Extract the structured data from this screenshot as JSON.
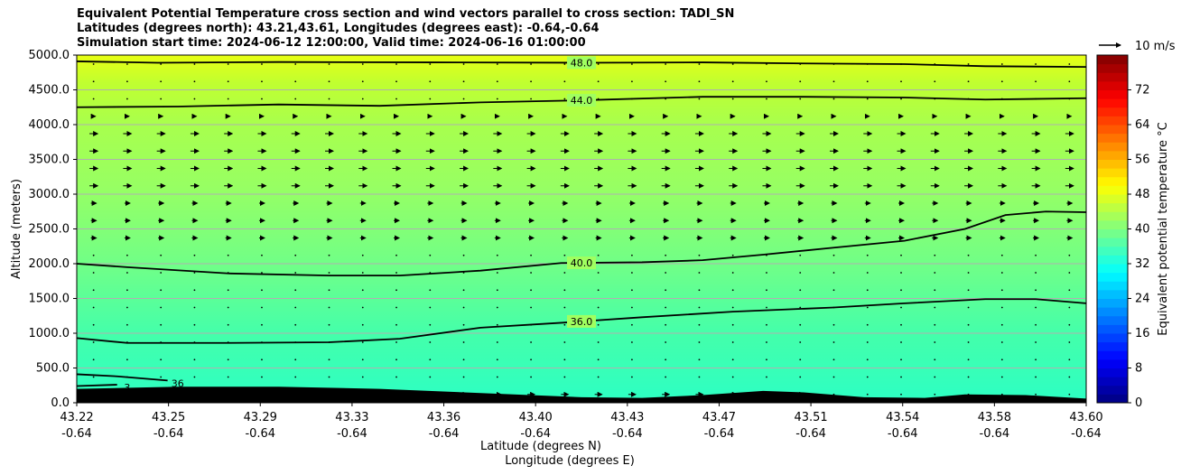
{
  "chart_data": {
    "type": "heatmap",
    "title": [
      "Equivalent Potential Temperature cross section and wind vectors parallel to cross section: TADI_SN",
      "Latitudes (degrees north): 43.21,43.61, Longitudes (degrees east): -0.64,-0.64",
      "Simulation start time: 2024-06-12 12:00:00, Valid time: 2024-06-16 01:00:00"
    ],
    "xlabel": "Latitude (degrees N)",
    "xlabel2": "Longitude (degrees E)",
    "ylabel": "Altitude (meters)",
    "ylim": [
      0,
      5000
    ],
    "yticks": [
      "0.0",
      "500.0",
      "1000.0",
      "1500.0",
      "2000.0",
      "2500.0",
      "3000.0",
      "3500.0",
      "4000.0",
      "4500.0",
      "5000.0"
    ],
    "xticks_lat": [
      "43.22",
      "43.25",
      "43.29",
      "43.33",
      "43.36",
      "43.40",
      "43.43",
      "43.47",
      "43.51",
      "43.54",
      "43.58",
      "43.60"
    ],
    "xticks_lon": [
      "-0.64",
      "-0.64",
      "-0.64",
      "-0.64",
      "-0.64",
      "-0.64",
      "-0.64",
      "-0.64",
      "-0.64",
      "-0.64",
      "-0.64",
      "-0.64"
    ],
    "colorbar": {
      "label": "Equivalent potential temperature °C",
      "range": [
        0,
        80
      ],
      "ticks": [
        "0",
        "8",
        "16",
        "24",
        "32",
        "40",
        "48",
        "56",
        "64",
        "72"
      ],
      "colormap": "jet"
    },
    "quiver_key": "10 m/s",
    "contours": [
      {
        "level": "48.0",
        "label": "48.0",
        "x": [
          0,
          0.08,
          0.2,
          0.35,
          0.5,
          0.62,
          0.72,
          0.82,
          0.9,
          1.0
        ],
        "y": [
          4910,
          4890,
          4900,
          4895,
          4890,
          4895,
          4880,
          4870,
          4840,
          4830
        ]
      },
      {
        "level": "44.0",
        "label": "44.0",
        "x": [
          0,
          0.1,
          0.2,
          0.3,
          0.4,
          0.5,
          0.62,
          0.72,
          0.82,
          0.9,
          1.0
        ],
        "y": [
          4250,
          4260,
          4290,
          4270,
          4320,
          4350,
          4400,
          4400,
          4390,
          4360,
          4380
        ]
      },
      {
        "level": "40.0",
        "label": "40.0",
        "x": [
          0,
          0.05,
          0.15,
          0.25,
          0.32,
          0.4,
          0.48,
          0.56,
          0.62,
          0.68,
          0.75,
          0.82,
          0.88,
          0.92,
          0.96,
          1.0
        ],
        "y": [
          2000,
          1950,
          1860,
          1830,
          1830,
          1900,
          2010,
          2020,
          2050,
          2130,
          2230,
          2330,
          2500,
          2700,
          2750,
          2740
        ]
      },
      {
        "level": "36.0",
        "label": "36.0",
        "x": [
          0,
          0.05,
          0.15,
          0.25,
          0.32,
          0.4,
          0.48,
          0.56,
          0.65,
          0.75,
          0.82,
          0.9,
          0.95,
          1.0
        ],
        "y": [
          930,
          860,
          860,
          870,
          920,
          1080,
          1150,
          1230,
          1310,
          1370,
          1430,
          1490,
          1490,
          1430
        ]
      },
      {
        "level": "36.0",
        "label": "36",
        "x": [
          0,
          0.04,
          0.09
        ],
        "y": [
          410,
          380,
          320
        ]
      },
      {
        "level": "36.0",
        "label": "3",
        "x": [
          0,
          0.04
        ],
        "y": [
          240,
          260
        ]
      }
    ],
    "terrain": {
      "x": [
        0,
        0.1,
        0.2,
        0.3,
        0.4,
        0.5,
        0.56,
        0.62,
        0.68,
        0.72,
        0.78,
        0.84,
        0.88,
        0.94,
        1.0
      ],
      "y": [
        200,
        230,
        230,
        200,
        140,
        80,
        70,
        110,
        170,
        150,
        80,
        70,
        120,
        110,
        60
      ]
    },
    "grid": true
  }
}
